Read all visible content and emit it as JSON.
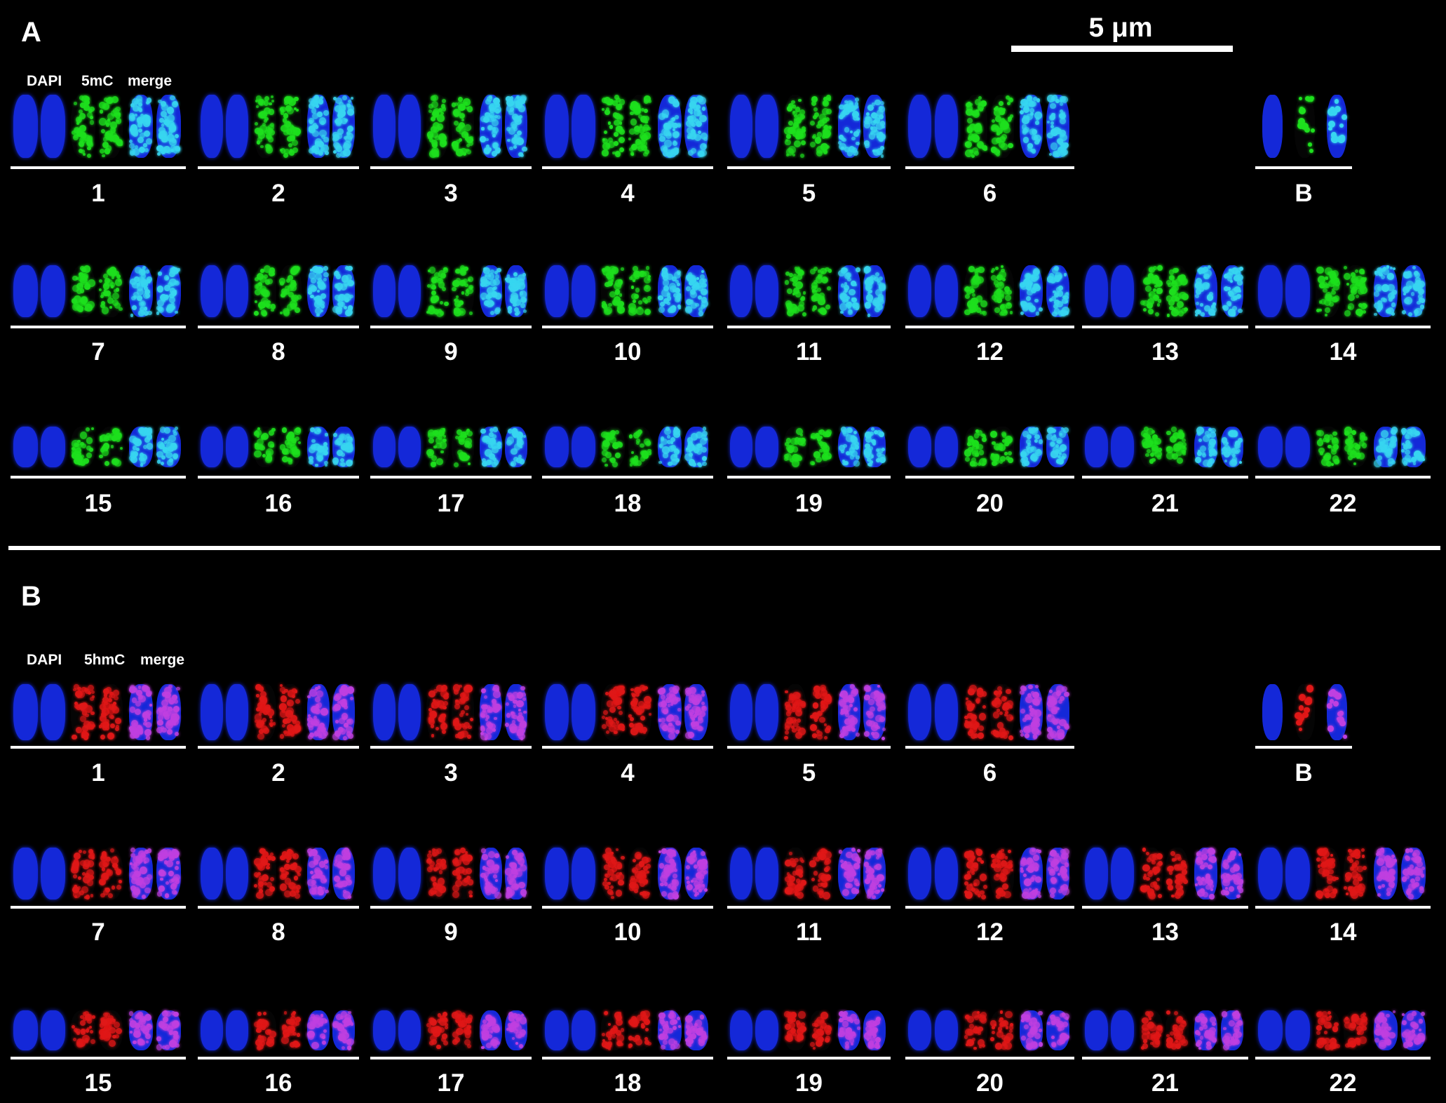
{
  "panels": [
    {
      "letter": "A",
      "channels": [
        "DAPI",
        "5mC",
        "merge"
      ],
      "signal_color": "#1ee01e",
      "merge_color": "#38d6f0",
      "rows": [
        [
          "1",
          "2",
          "3",
          "4",
          "5",
          "6",
          "B"
        ],
        [
          "7",
          "8",
          "9",
          "10",
          "11",
          "12",
          "13",
          "14"
        ],
        [
          "15",
          "16",
          "17",
          "18",
          "19",
          "20",
          "21",
          "22"
        ]
      ]
    },
    {
      "letter": "B",
      "channels": [
        "DAPI",
        "5hmC",
        "merge"
      ],
      "signal_color": "#e01818",
      "merge_color": "#c040e0",
      "rows": [
        [
          "1",
          "2",
          "3",
          "4",
          "5",
          "6",
          "B"
        ],
        [
          "7",
          "8",
          "9",
          "10",
          "11",
          "12",
          "13",
          "14"
        ],
        [
          "15",
          "16",
          "17",
          "18",
          "19",
          "20",
          "21",
          "22"
        ]
      ]
    }
  ],
  "scale_bar": {
    "label": "5 μm"
  },
  "dapi_color": "#1428d8",
  "background": "#000000"
}
